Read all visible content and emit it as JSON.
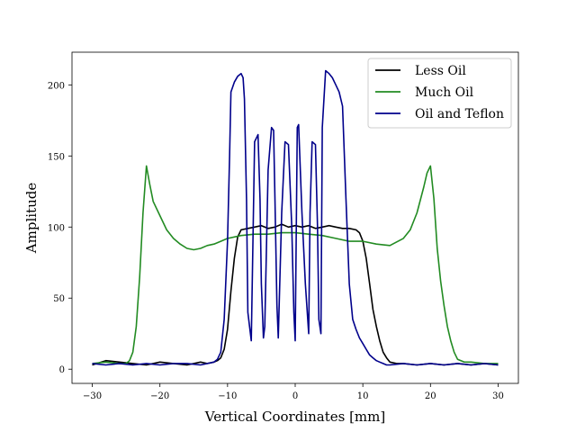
{
  "chart_data": {
    "type": "line",
    "title": "",
    "xlabel": "Vertical Coordinates [mm]",
    "ylabel": "Amplitude",
    "xlim": [
      -33,
      33
    ],
    "ylim": [
      -10,
      223
    ],
    "xticks": [
      -30,
      -20,
      -10,
      0,
      10,
      20,
      30
    ],
    "yticks": [
      0,
      50,
      100,
      150,
      200
    ],
    "grid": false,
    "legend_position": "top-right",
    "series": [
      {
        "name": "Less Oil",
        "color": "#000000",
        "x": [
          -30,
          -28,
          -26,
          -24,
          -22,
          -20,
          -18,
          -16,
          -14,
          -13,
          -12,
          -11.5,
          -11,
          -10.5,
          -10,
          -9.5,
          -9,
          -8.5,
          -8,
          -7,
          -6,
          -5,
          -4,
          -3,
          -2,
          -1,
          0,
          1,
          2,
          3,
          4,
          5,
          6,
          7,
          8,
          9,
          9.5,
          10,
          10.5,
          11,
          11.5,
          12,
          12.5,
          13,
          13.5,
          14,
          15,
          16,
          18,
          20,
          22,
          24,
          26,
          28,
          30
        ],
        "y": [
          3,
          6,
          5,
          4,
          3,
          5,
          4,
          3,
          5,
          4,
          5,
          6,
          8,
          14,
          28,
          55,
          78,
          93,
          98,
          99,
          100,
          101,
          99,
          100,
          102,
          100,
          101,
          100,
          101,
          99,
          100,
          101,
          100,
          99,
          99,
          98,
          96,
          90,
          78,
          60,
          42,
          30,
          20,
          12,
          8,
          5,
          4,
          4,
          3,
          4,
          3,
          4,
          3,
          4,
          3
        ]
      },
      {
        "name": "Much Oil",
        "color": "#228b22",
        "x": [
          -30,
          -28,
          -26,
          -25,
          -24.5,
          -24,
          -23.5,
          -23,
          -22.5,
          -22,
          -21.5,
          -21,
          -20,
          -19,
          -18,
          -17,
          -16,
          -15,
          -14,
          -13,
          -12,
          -11,
          -10,
          -8,
          -6,
          -4,
          -2,
          0,
          2,
          4,
          6,
          8,
          10,
          12,
          14,
          16,
          17,
          18,
          19,
          19.5,
          20,
          20.5,
          21,
          21.5,
          22,
          22.5,
          23,
          23.5,
          24,
          25,
          26,
          28,
          30
        ],
        "y": [
          4,
          5,
          4,
          4,
          6,
          12,
          30,
          65,
          110,
          143,
          130,
          118,
          108,
          98,
          92,
          88,
          85,
          84,
          85,
          87,
          88,
          90,
          92,
          94,
          95,
          95,
          96,
          96,
          95,
          94,
          92,
          90,
          90,
          88,
          87,
          92,
          98,
          110,
          128,
          138,
          143,
          120,
          85,
          62,
          45,
          30,
          20,
          12,
          7,
          5,
          5,
          4,
          4
        ]
      },
      {
        "name": "Oil and Teflon",
        "color": "#00008b",
        "x": [
          -30,
          -28,
          -26,
          -24,
          -22,
          -20,
          -18,
          -16,
          -14,
          -12,
          -11.5,
          -11,
          -10.5,
          -10,
          -9.7,
          -9.5,
          -9,
          -8.5,
          -8,
          -7.7,
          -7.5,
          -7.2,
          -7,
          -6.5,
          -6,
          -5.5,
          -5.2,
          -5,
          -4.7,
          -4.5,
          -4,
          -3.5,
          -3.2,
          -3,
          -2.7,
          -2.5,
          -2,
          -1.5,
          -1,
          -0.5,
          -0.2,
          0,
          0.3,
          0.5,
          1,
          1.5,
          2,
          2.2,
          2.5,
          3,
          3.3,
          3.5,
          3.8,
          4,
          4.5,
          5,
          5.5,
          6,
          6.5,
          7,
          7.5,
          8,
          8.5,
          9,
          9.5,
          10,
          10.5,
          11,
          11.5,
          12,
          12.5,
          13,
          13.5,
          14,
          16,
          18,
          20,
          22,
          24,
          26,
          28,
          30
        ],
        "y": [
          4,
          3,
          4,
          3,
          4,
          3,
          4,
          4,
          3,
          5,
          7,
          12,
          35,
          90,
          150,
          195,
          202,
          206,
          208,
          205,
          190,
          120,
          40,
          20,
          160,
          165,
          120,
          60,
          22,
          30,
          140,
          170,
          168,
          120,
          45,
          22,
          110,
          160,
          158,
          100,
          40,
          20,
          170,
          172,
          110,
          60,
          25,
          110,
          160,
          158,
          100,
          35,
          25,
          170,
          210,
          208,
          205,
          200,
          195,
          185,
          120,
          60,
          35,
          28,
          22,
          18,
          14,
          10,
          8,
          6,
          5,
          4,
          3,
          3,
          4,
          3,
          4,
          3,
          4,
          3,
          4,
          3
        ]
      }
    ]
  }
}
